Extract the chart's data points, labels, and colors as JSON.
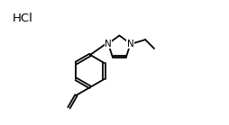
{
  "hcl_text": "HCl",
  "background_color": "#ffffff",
  "bond_color": "#000000",
  "line_width": 1.3,
  "font_size_atom": 7.5,
  "text_color": "#000000"
}
